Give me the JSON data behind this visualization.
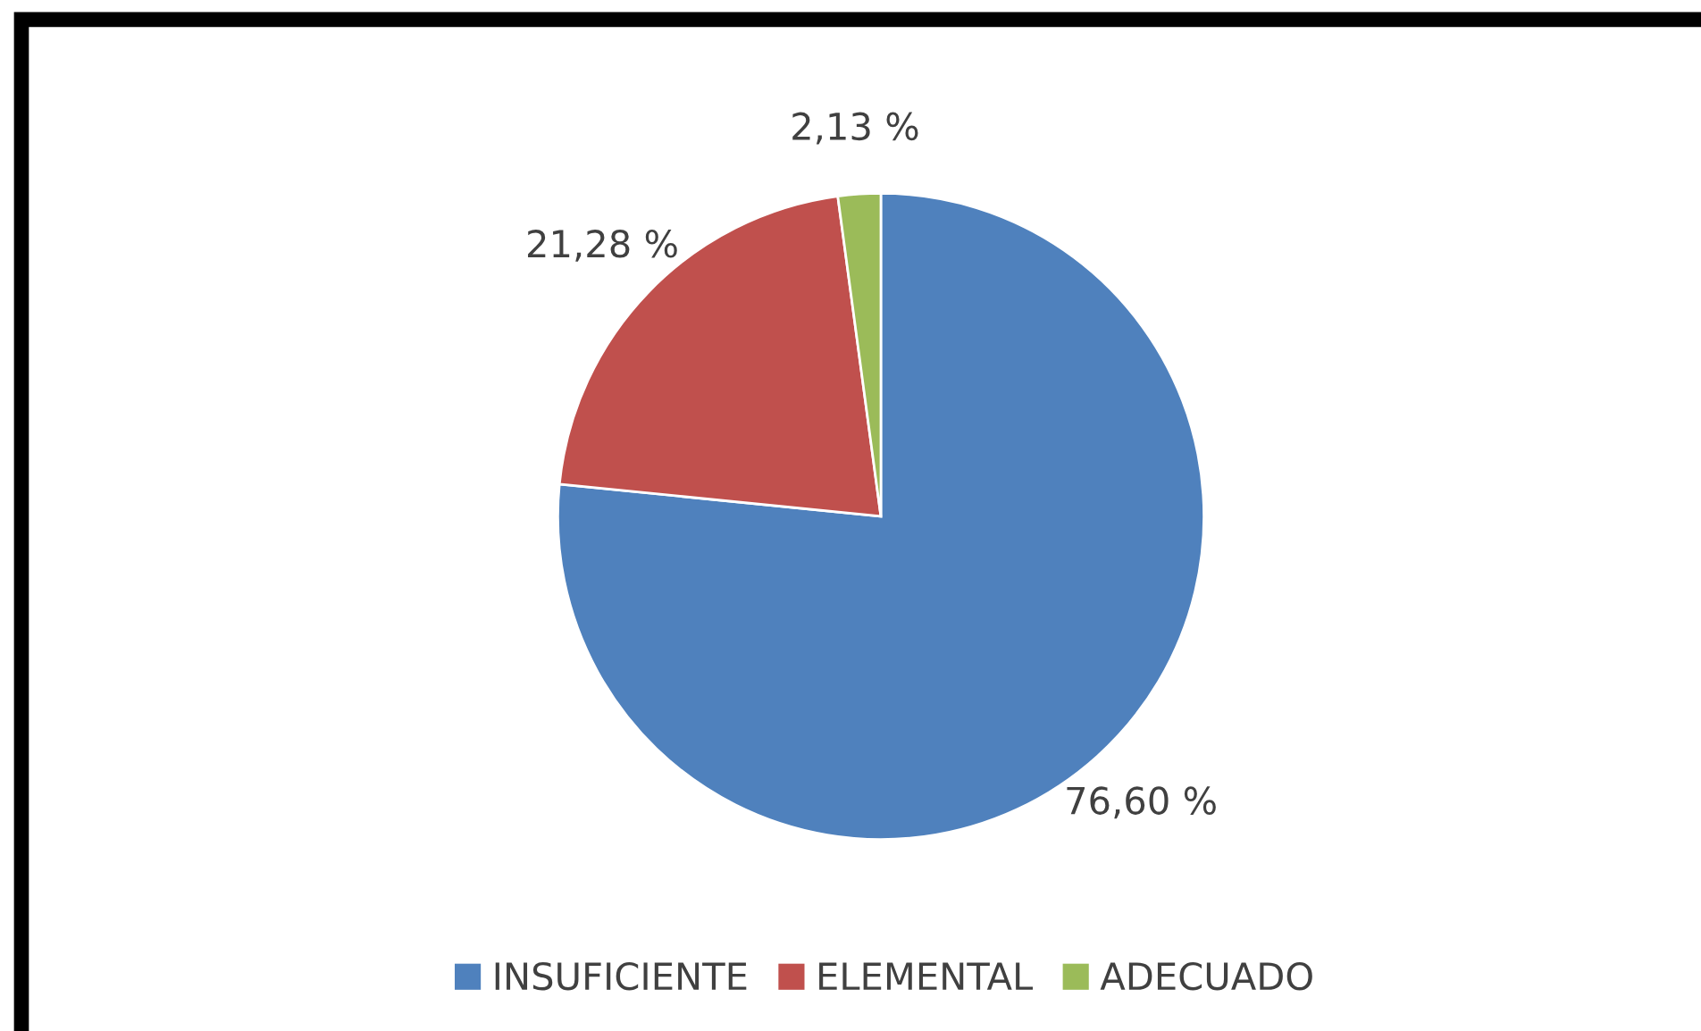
{
  "chart_data": {
    "type": "pie",
    "categories": [
      "INSUFICIENTE",
      "ELEMENTAL",
      "ADECUADO"
    ],
    "values": [
      76.6,
      21.28,
      2.13
    ],
    "value_labels": [
      "76,60 %",
      "21,28 %",
      "2,13 %"
    ],
    "colors": [
      "#4f81bd",
      "#c0504d",
      "#9bbb59"
    ],
    "legend": "bottom"
  }
}
